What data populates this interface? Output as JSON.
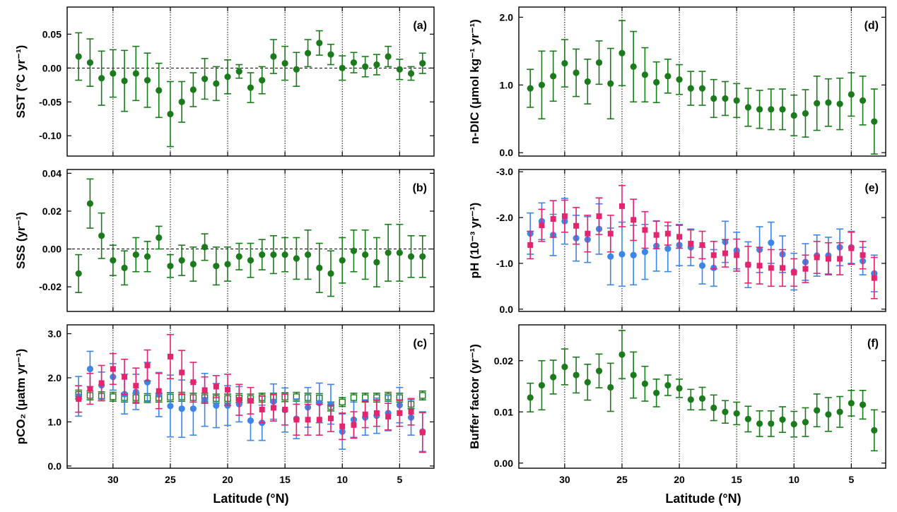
{
  "figure": {
    "xlabel": "Latitude (°N)"
  },
  "colors": {
    "green": "#1b7a1b",
    "blue": "#3d85e6",
    "magenta": "#e6246e",
    "frame": "#000000"
  },
  "chart_data": [
    {
      "type": "scatter",
      "panel_label": "(a)",
      "ylabel": "SST (°C yr⁻¹)",
      "xlim": [
        34,
        2
      ],
      "ylim": [
        -0.13,
        0.09
      ],
      "xticks": [
        30,
        25,
        20,
        15,
        10,
        5
      ],
      "yticks": [
        -0.1,
        -0.05,
        0.0,
        0.05
      ],
      "ytick_labels": [
        "-0.10",
        "-0.05",
        "0.00",
        "0.05"
      ],
      "zero_line": true,
      "grid": "vertical dotted at 30, 25, 20, 15, 10, 5",
      "series": [
        {
          "color": "green",
          "marker": "circle",
          "x": [
            33,
            32,
            31,
            30,
            29,
            28,
            27,
            26,
            25,
            24,
            23,
            22,
            21,
            20,
            19,
            18,
            17,
            16,
            15,
            14,
            13,
            12,
            11,
            10,
            9,
            8,
            7,
            6,
            5,
            4,
            3
          ],
          "y": [
            0.017,
            0.008,
            -0.015,
            -0.008,
            -0.019,
            -0.008,
            -0.018,
            -0.033,
            -0.068,
            -0.05,
            -0.032,
            -0.016,
            -0.023,
            -0.013,
            -0.005,
            -0.029,
            -0.018,
            0.017,
            0.007,
            -0.002,
            0.022,
            0.037,
            0.02,
            0.0,
            0.008,
            0.002,
            0.005,
            0.017,
            -0.002,
            -0.008,
            0.007
          ],
          "err": [
            0.035,
            0.035,
            0.04,
            0.035,
            0.045,
            0.04,
            0.04,
            0.04,
            0.048,
            0.03,
            0.025,
            0.03,
            0.025,
            0.025,
            0.01,
            0.022,
            0.02,
            0.025,
            0.025,
            0.025,
            0.02,
            0.018,
            0.015,
            0.018,
            0.015,
            0.015,
            0.015,
            0.015,
            0.015,
            0.01,
            0.015
          ]
        }
      ]
    },
    {
      "type": "scatter",
      "panel_label": "(b)",
      "ylabel": "SSS (yr⁻¹)",
      "xlim": [
        34,
        2
      ],
      "ylim": [
        -0.033,
        0.042
      ],
      "xticks": [
        30,
        25,
        20,
        15,
        10,
        5
      ],
      "yticks": [
        -0.02,
        0.0,
        0.02,
        0.04
      ],
      "ytick_labels": [
        "-0.02",
        "0.00",
        "0.02",
        "0.04"
      ],
      "zero_line": true,
      "grid": "vertical dotted at 30, 25, 20, 15, 10, 5",
      "series": [
        {
          "color": "green",
          "marker": "circle",
          "x": [
            33,
            32,
            31,
            30,
            29,
            28,
            27,
            26,
            25,
            24,
            23,
            22,
            21,
            20,
            19,
            18,
            17,
            16,
            15,
            14,
            13,
            12,
            11,
            10,
            9,
            8,
            7,
            6,
            5,
            4,
            3
          ],
          "y": [
            -0.013,
            0.024,
            0.007,
            -0.006,
            -0.01,
            -0.003,
            -0.004,
            0.006,
            -0.009,
            -0.006,
            -0.008,
            0.001,
            -0.009,
            -0.008,
            -0.004,
            -0.006,
            -0.003,
            -0.003,
            -0.003,
            -0.005,
            -0.003,
            -0.01,
            -0.013,
            -0.006,
            -0.001,
            -0.003,
            -0.007,
            -0.002,
            -0.002,
            -0.004,
            -0.004
          ],
          "err": [
            0.01,
            0.013,
            0.012,
            0.008,
            0.009,
            0.009,
            0.008,
            0.006,
            0.006,
            0.008,
            0.009,
            0.007,
            0.01,
            0.009,
            0.007,
            0.009,
            0.008,
            0.01,
            0.009,
            0.011,
            0.013,
            0.013,
            0.012,
            0.012,
            0.011,
            0.013,
            0.013,
            0.015,
            0.015,
            0.011,
            0.011
          ]
        }
      ]
    },
    {
      "type": "scatter",
      "panel_label": "(c)",
      "ylabel": "pCO₂ (μatm yr⁻¹)",
      "xlim": [
        34,
        2
      ],
      "ylim": [
        -0.05,
        3.2
      ],
      "xticks": [
        30,
        25,
        20,
        15,
        10,
        5
      ],
      "yticks": [
        0.0,
        1.0,
        2.0,
        3.0
      ],
      "ytick_labels": [
        "0.0",
        "1.0",
        "2.0",
        "3.0"
      ],
      "zero_line": false,
      "grid": "vertical dotted at 30, 25, 20, 15, 10, 5",
      "series": [
        {
          "color": "green",
          "marker": "open-square",
          "x": [
            33,
            32,
            31,
            30,
            29,
            28,
            27,
            26,
            25,
            24,
            23,
            22,
            21,
            20,
            19,
            18,
            17,
            16,
            15,
            14,
            13,
            12,
            11,
            10,
            9,
            8,
            7,
            6,
            5,
            4,
            3
          ],
          "y": [
            1.62,
            1.6,
            1.58,
            1.57,
            1.55,
            1.55,
            1.54,
            1.55,
            1.56,
            1.57,
            1.55,
            1.55,
            1.53,
            1.53,
            1.54,
            1.53,
            1.55,
            1.55,
            1.56,
            1.57,
            1.55,
            1.54,
            1.35,
            1.45,
            1.55,
            1.55,
            1.55,
            1.57,
            1.55,
            1.4,
            1.6
          ],
          "err": [
            0.1,
            0.1,
            0.1,
            0.1,
            0.1,
            0.1,
            0.1,
            0.1,
            0.1,
            0.1,
            0.1,
            0.1,
            0.1,
            0.1,
            0.1,
            0.1,
            0.1,
            0.1,
            0.1,
            0.1,
            0.1,
            0.1,
            0.1,
            0.1,
            0.1,
            0.1,
            0.1,
            0.1,
            0.1,
            0.1,
            0.1
          ]
        },
        {
          "color": "blue",
          "marker": "circle",
          "x": [
            33,
            32,
            31,
            30,
            29,
            28,
            27,
            26,
            25,
            24,
            23,
            22,
            21,
            20,
            19,
            18,
            17,
            16,
            15,
            14,
            13,
            12,
            11,
            10,
            9,
            8,
            7,
            6,
            5,
            4,
            3
          ],
          "y": [
            1.58,
            2.2,
            1.83,
            2.02,
            1.63,
            1.68,
            1.9,
            1.62,
            1.36,
            1.3,
            1.3,
            1.5,
            1.37,
            1.37,
            1.4,
            1.03,
            0.98,
            1.46,
            1.27,
            1.07,
            1.33,
            1.43,
            1.4,
            0.78,
            1.05,
            1.1,
            1.14,
            1.2,
            1.38,
            1.1,
            0.78
          ],
          "err": [
            0.45,
            0.4,
            0.3,
            0.3,
            0.45,
            0.4,
            0.45,
            0.5,
            0.7,
            0.65,
            0.6,
            0.6,
            0.5,
            0.45,
            0.4,
            0.45,
            0.4,
            0.4,
            0.5,
            0.45,
            0.45,
            0.45,
            0.45,
            0.4,
            0.4,
            0.4,
            0.4,
            0.4,
            0.4,
            0.4,
            0.45
          ]
        },
        {
          "color": "magenta",
          "marker": "square",
          "x": [
            33,
            32,
            31,
            30,
            29,
            28,
            27,
            26,
            25,
            24,
            23,
            22,
            21,
            20,
            19,
            18,
            17,
            16,
            15,
            14,
            13,
            12,
            11,
            10,
            9,
            8,
            7,
            6,
            5,
            4,
            3
          ],
          "y": [
            1.52,
            1.75,
            1.88,
            2.2,
            2.02,
            1.82,
            2.28,
            1.7,
            2.48,
            2.12,
            1.9,
            1.72,
            1.8,
            1.73,
            1.5,
            1.48,
            1.28,
            1.32,
            1.28,
            1.05,
            1.05,
            1.05,
            1.08,
            0.9,
            0.93,
            1.17,
            1.2,
            1.12,
            1.2,
            1.23,
            0.76
          ],
          "err": [
            0.3,
            0.35,
            0.4,
            0.35,
            0.4,
            0.4,
            0.35,
            0.4,
            0.5,
            0.5,
            0.45,
            0.3,
            0.25,
            0.35,
            0.35,
            0.3,
            0.3,
            0.3,
            0.35,
            0.35,
            0.35,
            0.35,
            0.3,
            0.3,
            0.3,
            0.3,
            0.3,
            0.3,
            0.3,
            0.3,
            0.45
          ]
        }
      ]
    },
    {
      "type": "scatter",
      "panel_label": "(d)",
      "ylabel": "n-DIC (μmol kg⁻¹ yr⁻¹)",
      "xlim": [
        34,
        2
      ],
      "ylim": [
        -0.05,
        2.15
      ],
      "xticks": [
        30,
        25,
        20,
        15,
        10,
        5
      ],
      "yticks": [
        0.0,
        1.0,
        2.0
      ],
      "ytick_labels": [
        "0.0",
        "1.0",
        "2.0"
      ],
      "zero_line": false,
      "grid": "vertical dotted at 30, 25, 20, 15, 10, 5",
      "series": [
        {
          "color": "green",
          "marker": "circle",
          "x": [
            33,
            32,
            31,
            30,
            29,
            28,
            27,
            26,
            25,
            24,
            23,
            22,
            21,
            20,
            19,
            18,
            17,
            16,
            15,
            14,
            13,
            12,
            11,
            10,
            9,
            8,
            7,
            6,
            5,
            4,
            3
          ],
          "y": [
            0.95,
            1.0,
            1.13,
            1.32,
            1.18,
            1.05,
            1.33,
            1.02,
            1.47,
            1.27,
            1.15,
            1.04,
            1.13,
            1.08,
            0.95,
            0.95,
            0.8,
            0.8,
            0.77,
            0.67,
            0.64,
            0.64,
            0.64,
            0.55,
            0.58,
            0.73,
            0.74,
            0.72,
            0.86,
            0.77,
            0.46
          ],
          "err": [
            0.28,
            0.5,
            0.37,
            0.35,
            0.35,
            0.33,
            0.32,
            0.52,
            0.48,
            0.52,
            0.4,
            0.3,
            0.25,
            0.22,
            0.25,
            0.25,
            0.28,
            0.25,
            0.25,
            0.28,
            0.28,
            0.3,
            0.3,
            0.3,
            0.35,
            0.4,
            0.35,
            0.38,
            0.32,
            0.36,
            0.48
          ]
        }
      ]
    },
    {
      "type": "scatter",
      "panel_label": "(e)",
      "ylabel": "pH (10⁻³ yr⁻¹)",
      "xlim": [
        34,
        2
      ],
      "ylim": [
        0.05,
        -3.05
      ],
      "xticks": [
        30,
        25,
        20,
        15,
        10,
        5
      ],
      "yticks": [
        0.0,
        -1.0,
        -2.0,
        -3.0
      ],
      "ytick_labels": [
        "0.0",
        "-1.0",
        "-2.0",
        "-3.0"
      ],
      "zero_line": false,
      "grid": "vertical dotted at 30, 25, 20, 15, 10, 5",
      "series": [
        {
          "color": "blue",
          "marker": "circle",
          "x": [
            33,
            32,
            31,
            30,
            29,
            28,
            27,
            26,
            25,
            24,
            23,
            22,
            21,
            20,
            19,
            18,
            17,
            16,
            15,
            14,
            13,
            12,
            11,
            10,
            9,
            8,
            7,
            6,
            5,
            4,
            3
          ],
          "y": [
            -1.65,
            -1.92,
            -1.62,
            -1.92,
            -1.55,
            -1.52,
            -1.75,
            -1.15,
            -1.2,
            -1.18,
            -1.25,
            -1.38,
            -1.32,
            -1.4,
            -1.35,
            -0.95,
            -0.9,
            -1.47,
            -1.28,
            -0.97,
            -1.3,
            -1.45,
            -1.2,
            -0.82,
            -1.03,
            -1.17,
            -1.17,
            -1.35,
            -1.35,
            -1.05,
            -0.78
          ],
          "err": [
            0.45,
            0.4,
            0.45,
            0.5,
            0.5,
            0.5,
            0.55,
            0.62,
            0.7,
            0.65,
            0.6,
            0.55,
            0.5,
            0.45,
            0.4,
            0.4,
            0.4,
            0.45,
            0.4,
            0.5,
            0.5,
            0.45,
            0.4,
            0.4,
            0.4,
            0.45,
            0.4,
            0.4,
            0.35,
            0.3,
            0.4
          ]
        },
        {
          "color": "magenta",
          "marker": "square",
          "x": [
            33,
            32,
            31,
            30,
            29,
            28,
            27,
            26,
            25,
            24,
            23,
            22,
            21,
            20,
            19,
            18,
            17,
            16,
            15,
            14,
            13,
            12,
            11,
            10,
            9,
            8,
            7,
            6,
            5,
            4,
            3
          ],
          "y": [
            -1.4,
            -1.83,
            -1.97,
            -2.03,
            -1.82,
            -1.65,
            -2.03,
            -1.65,
            -2.25,
            -1.95,
            -1.73,
            -1.62,
            -1.65,
            -1.58,
            -1.43,
            -1.4,
            -1.18,
            -1.22,
            -1.18,
            -0.97,
            -0.95,
            -0.9,
            -0.9,
            -0.8,
            -0.88,
            -1.13,
            -1.1,
            -1.1,
            -1.33,
            -1.18,
            -0.68
          ],
          "err": [
            0.3,
            0.35,
            0.4,
            0.35,
            0.4,
            0.4,
            0.4,
            0.4,
            0.45,
            0.45,
            0.4,
            0.3,
            0.25,
            0.25,
            0.3,
            0.3,
            0.3,
            0.3,
            0.35,
            0.4,
            0.4,
            0.4,
            0.4,
            0.3,
            0.3,
            0.35,
            0.35,
            0.35,
            0.35,
            0.3,
            0.45
          ]
        }
      ]
    },
    {
      "type": "scatter",
      "panel_label": "(f)",
      "ylabel": "Buffer factor (yr⁻¹)",
      "xlim": [
        34,
        2
      ],
      "ylim": [
        -0.001,
        0.027
      ],
      "xticks": [
        30,
        25,
        20,
        15,
        10,
        5
      ],
      "yticks": [
        0.0,
        0.01,
        0.02
      ],
      "ytick_labels": [
        "0.00",
        "0.01",
        "0.02"
      ],
      "zero_line": false,
      "grid": "vertical dotted at 30, 25, 20, 15, 10, 5",
      "series": [
        {
          "color": "green",
          "marker": "circle",
          "x": [
            33,
            32,
            31,
            30,
            29,
            28,
            27,
            26,
            25,
            24,
            23,
            22,
            21,
            20,
            19,
            18,
            17,
            16,
            15,
            14,
            13,
            12,
            11,
            10,
            9,
            8,
            7,
            6,
            5,
            4,
            3
          ],
          "y": [
            0.0128,
            0.0152,
            0.0168,
            0.0188,
            0.0172,
            0.0158,
            0.018,
            0.0148,
            0.0212,
            0.0172,
            0.0155,
            0.0137,
            0.0152,
            0.0146,
            0.0124,
            0.0126,
            0.0108,
            0.01,
            0.0097,
            0.0086,
            0.0077,
            0.0077,
            0.0085,
            0.0076,
            0.008,
            0.0103,
            0.0095,
            0.01,
            0.0117,
            0.0114,
            0.0064
          ],
          "err": [
            0.0028,
            0.0048,
            0.0033,
            0.0035,
            0.0035,
            0.0035,
            0.0033,
            0.0047,
            0.0047,
            0.0045,
            0.0034,
            0.0027,
            0.002,
            0.0018,
            0.002,
            0.0022,
            0.0025,
            0.0022,
            0.0022,
            0.0025,
            0.0025,
            0.0025,
            0.0025,
            0.0025,
            0.0028,
            0.0032,
            0.0033,
            0.003,
            0.0025,
            0.0028,
            0.004
          ]
        }
      ]
    }
  ]
}
